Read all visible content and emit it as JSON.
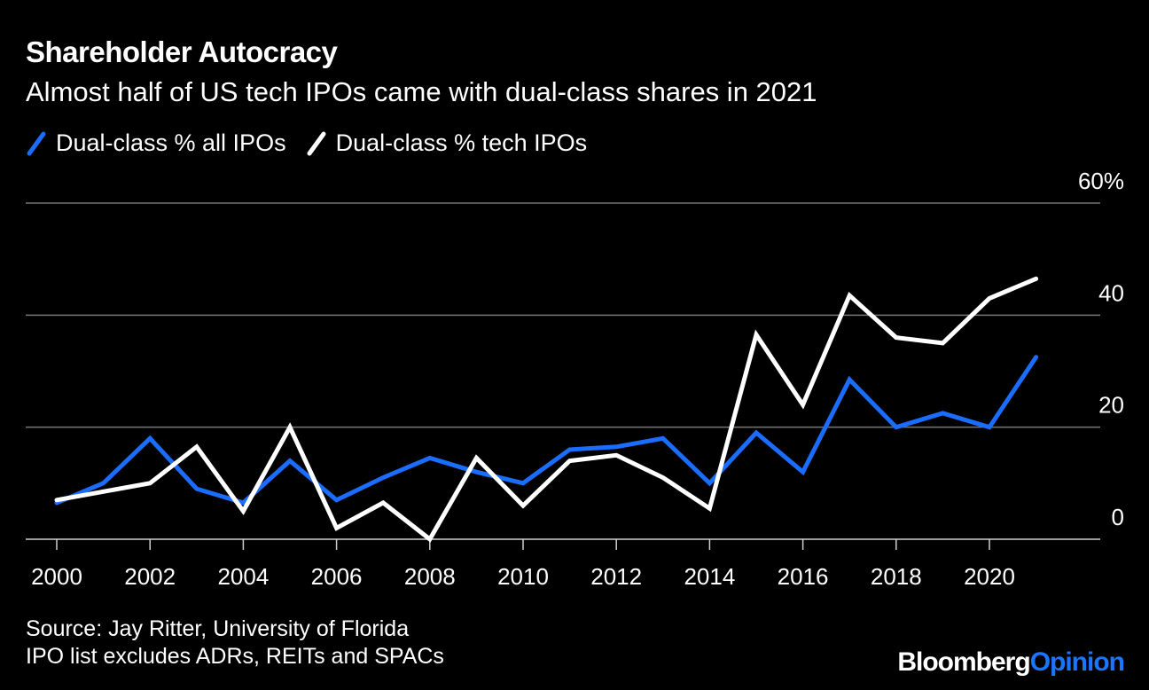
{
  "header": {
    "title": "Shareholder Autocracy",
    "subtitle": "Almost half of US tech IPOs came with dual-class shares in 2021"
  },
  "legend": {
    "items": [
      {
        "label": "Dual-class % all IPOs",
        "color": "#1a6dff"
      },
      {
        "label": "Dual-class % tech IPOs",
        "color": "#ffffff"
      }
    ]
  },
  "chart_data": {
    "type": "line",
    "title": "Shareholder Autocracy",
    "subtitle": "Almost half of US tech IPOs came with dual-class shares in 2021",
    "x": [
      2000,
      2001,
      2002,
      2003,
      2004,
      2005,
      2006,
      2007,
      2008,
      2009,
      2010,
      2011,
      2012,
      2013,
      2014,
      2015,
      2016,
      2017,
      2018,
      2019,
      2020,
      2021
    ],
    "series": [
      {
        "name": "Dual-class % all IPOs",
        "color": "#1a6dff",
        "values": [
          6.5,
          10,
          18,
          9,
          6.5,
          14,
          7,
          11,
          14.5,
          12,
          10,
          16,
          16.5,
          18,
          10,
          19,
          12,
          28.5,
          20,
          22.5,
          20,
          32.5
        ]
      },
      {
        "name": "Dual-class % tech IPOs",
        "color": "#ffffff",
        "values": [
          7,
          8.5,
          10,
          16.5,
          5,
          20,
          2,
          6.5,
          0,
          14.5,
          6,
          14,
          15,
          11,
          5.5,
          36.5,
          24,
          43.5,
          36,
          35,
          43,
          46.5
        ]
      }
    ],
    "ylim": [
      0,
      60
    ],
    "yticks": [
      0,
      20,
      40,
      60
    ],
    "ytick_labels": [
      "0",
      "20",
      "40",
      "60%"
    ],
    "xticks": [
      2000,
      2002,
      2004,
      2006,
      2008,
      2010,
      2012,
      2014,
      2016,
      2018,
      2020
    ],
    "xtick_labels": [
      "2000",
      "2002",
      "2004",
      "2006",
      "2008",
      "2010",
      "2012",
      "2014",
      "2016",
      "2018",
      "2020"
    ],
    "xlabel": "",
    "ylabel": "",
    "grid": true,
    "legend_position": "top-left"
  },
  "footer": {
    "source_line1": "Source: Jay Ritter, University of Florida",
    "source_line2": "IPO list excludes ADRs, REITs and SPACs",
    "brand_part1": "Bloomberg",
    "brand_part2": "Opinion"
  }
}
